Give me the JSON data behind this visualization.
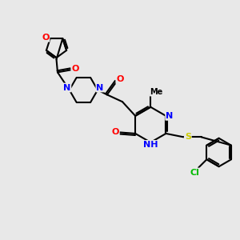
{
  "bg_color": "#e8e8e8",
  "bond_color": "#000000",
  "bond_width": 1.5,
  "atom_colors": {
    "N": "#0000ff",
    "O": "#ff0000",
    "S": "#cccc00",
    "Cl": "#00bb00",
    "C": "#000000",
    "H": "#008080"
  },
  "font_size": 8,
  "fig_size": [
    3.0,
    3.0
  ],
  "dpi": 100
}
